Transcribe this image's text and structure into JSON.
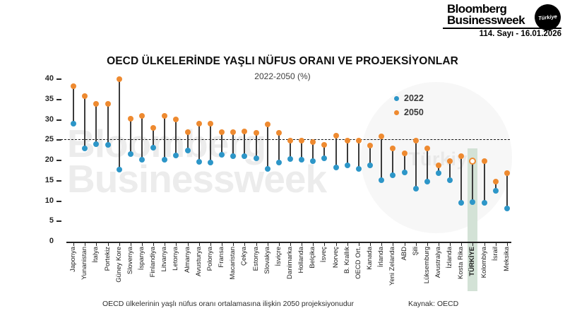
{
  "header": {
    "brand_line1": "Bloomberg",
    "brand_line2": "Businessweek",
    "brand_badge": "Türkiye",
    "issue": "114. Sayı - 16.01.2026"
  },
  "watermark": {
    "line1": "Bloomberg",
    "line2": "Businessweek",
    "circle_text": "Türkiye"
  },
  "chart": {
    "title": "OECD ÜLKELERİNDE YAŞLI NÜFUS ORANI VE PROJEKSİYONLAR",
    "subtitle": "2022-2050 (%)",
    "footnote": "OECD ülkelerinin yaşlı nüfus oranı ortalamasına ilişkin 2050 projeksiyonudur",
    "source": "Kaynak: OECD"
  },
  "chart_data": {
    "type": "scatter",
    "variant": "lollipop-dumbbell",
    "title": "OECD ÜLKELERİNDE YAŞLI NÜFUS ORANI VE PROJEKSİYONLAR",
    "subtitle": "2022-2050 (%)",
    "xlabel": "",
    "ylabel": "",
    "ylim": [
      0,
      40
    ],
    "yticks": [
      0,
      5,
      10,
      15,
      20,
      25,
      30,
      35,
      40
    ],
    "grid": false,
    "legend_position": "top-right",
    "reference_line": {
      "value": 25,
      "style": "dashed",
      "meaning": "OECD 2050 ortalama projeksiyonu"
    },
    "highlight_category": "TÜRKİYE",
    "categories": [
      "Japonya",
      "Yunanistan",
      "İtalya",
      "Portekiz",
      "Güney Kore",
      "Slovenya",
      "İspanya",
      "Finlandiya",
      "Litvanya",
      "Letonya",
      "Almanya",
      "Avusturya",
      "Polonya",
      "Fransa",
      "Macaristan",
      "Çekya",
      "Estonya",
      "Slovakya",
      "İsviçre",
      "Danimarka",
      "Hollanda",
      "Belçika",
      "İsveç",
      "Norveç",
      "B. Krallık",
      "OECD Ort.",
      "Kanada",
      "İrlanda",
      "Yeni Zelanda",
      "ABD",
      "Şili",
      "Lüksemburg",
      "Avustralya",
      "İzlanda",
      "Kosta Rika",
      "TÜRKİYE",
      "Kolombiya",
      "İsrail",
      "Meksika"
    ],
    "series": [
      {
        "name": "2022",
        "color": "#2d96c8",
        "values": [
          29.1,
          22.9,
          24.0,
          23.9,
          17.7,
          21.5,
          20.1,
          23.1,
          20.2,
          21.2,
          22.4,
          19.6,
          19.4,
          21.4,
          21.0,
          21.0,
          20.6,
          18.0,
          19.4,
          20.4,
          20.1,
          19.9,
          20.5,
          18.3,
          18.7,
          18.0,
          18.8,
          15.1,
          16.3,
          17.1,
          13.0,
          14.8,
          16.9,
          15.1,
          9.5,
          9.7,
          9.6,
          12.5,
          8.2
        ]
      },
      {
        "name": "2050",
        "color": "#ee8a30",
        "values": [
          38.3,
          35.9,
          34.0,
          34.0,
          40.0,
          30.2,
          31.0,
          28.0,
          31.0,
          30.1,
          27.0,
          29.0,
          29.0,
          27.0,
          27.0,
          27.1,
          26.8,
          28.9,
          26.8,
          24.8,
          24.8,
          24.6,
          23.8,
          26.1,
          24.9,
          24.9,
          23.7,
          25.9,
          22.9,
          21.8,
          24.9,
          22.9,
          18.8,
          19.8,
          21.1,
          19.7,
          19.8,
          14.8,
          16.8
        ]
      }
    ],
    "colors": {
      "series_2022": "#2d96c8",
      "series_2050": "#ee8a30",
      "stick": "#3c3c3c",
      "highlight_band": "#d3e2d6",
      "highlight_marker_fill": "#ffffff",
      "reference_line": "#151515"
    }
  }
}
